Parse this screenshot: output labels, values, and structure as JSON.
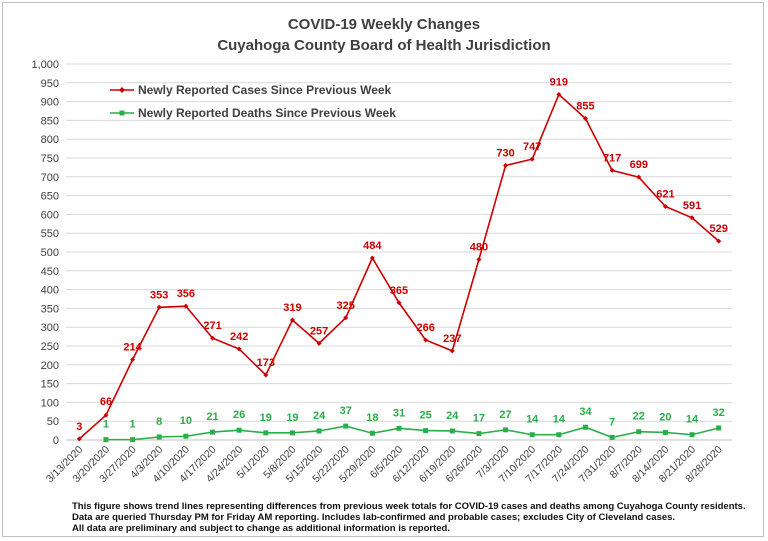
{
  "chart_data": {
    "type": "line",
    "title": "COVID-19 Weekly Changes",
    "subtitle": "Cuyahoga County Board of Health Jurisdiction",
    "xlabel": "",
    "ylabel": "",
    "ylim": [
      0,
      1000
    ],
    "ytick_step": 50,
    "ytick_labels": [
      "0",
      "50",
      "100",
      "150",
      "200",
      "250",
      "300",
      "350",
      "400",
      "450",
      "500",
      "550",
      "600",
      "650",
      "700",
      "750",
      "800",
      "850",
      "900",
      "950",
      "1,000"
    ],
    "grid": true,
    "legend_position": "top-left",
    "categories": [
      "3/13/2020",
      "3/20/2020",
      "3/27/2020",
      "4/3/2020",
      "4/10/2020",
      "4/17/2020",
      "4/24/2020",
      "5/1/2020",
      "5/8/2020",
      "5/15/2020",
      "5/22/2020",
      "5/29/2020",
      "6/5/2020",
      "6/12/2020",
      "6/19/2020",
      "6/26/2020",
      "7/3/2020",
      "7/10/2020",
      "7/17/2020",
      "7/24/2020",
      "7/31/2020",
      "8/7/2020",
      "8/14/2020",
      "8/21/2020",
      "8/28/2020"
    ],
    "series": [
      {
        "name": "Newly Reported Cases Since Previous Week",
        "color": "#cc0000",
        "marker": "diamond",
        "values": [
          3,
          66,
          214,
          353,
          356,
          271,
          242,
          173,
          319,
          257,
          325,
          484,
          365,
          266,
          237,
          480,
          730,
          747,
          919,
          855,
          717,
          699,
          621,
          591,
          529
        ]
      },
      {
        "name": "Newly Reported Deaths Since Previous Week",
        "color": "#2bae4a",
        "marker": "square",
        "values": [
          null,
          1,
          1,
          8,
          10,
          21,
          26,
          19,
          19,
          24,
          37,
          18,
          31,
          25,
          24,
          17,
          27,
          14,
          14,
          34,
          7,
          22,
          20,
          14,
          32
        ]
      }
    ]
  },
  "footnotes": [
    "This figure shows trend lines representing differences from previous week totals for COVID-19 cases and deaths among Cuyahoga County residents.",
    "Data are queried Thursday PM for Friday AM reporting. Includes lab-confirmed and probable cases; excludes City of Cleveland cases.",
    "All data are preliminary and subject to change as additional information is reported."
  ]
}
